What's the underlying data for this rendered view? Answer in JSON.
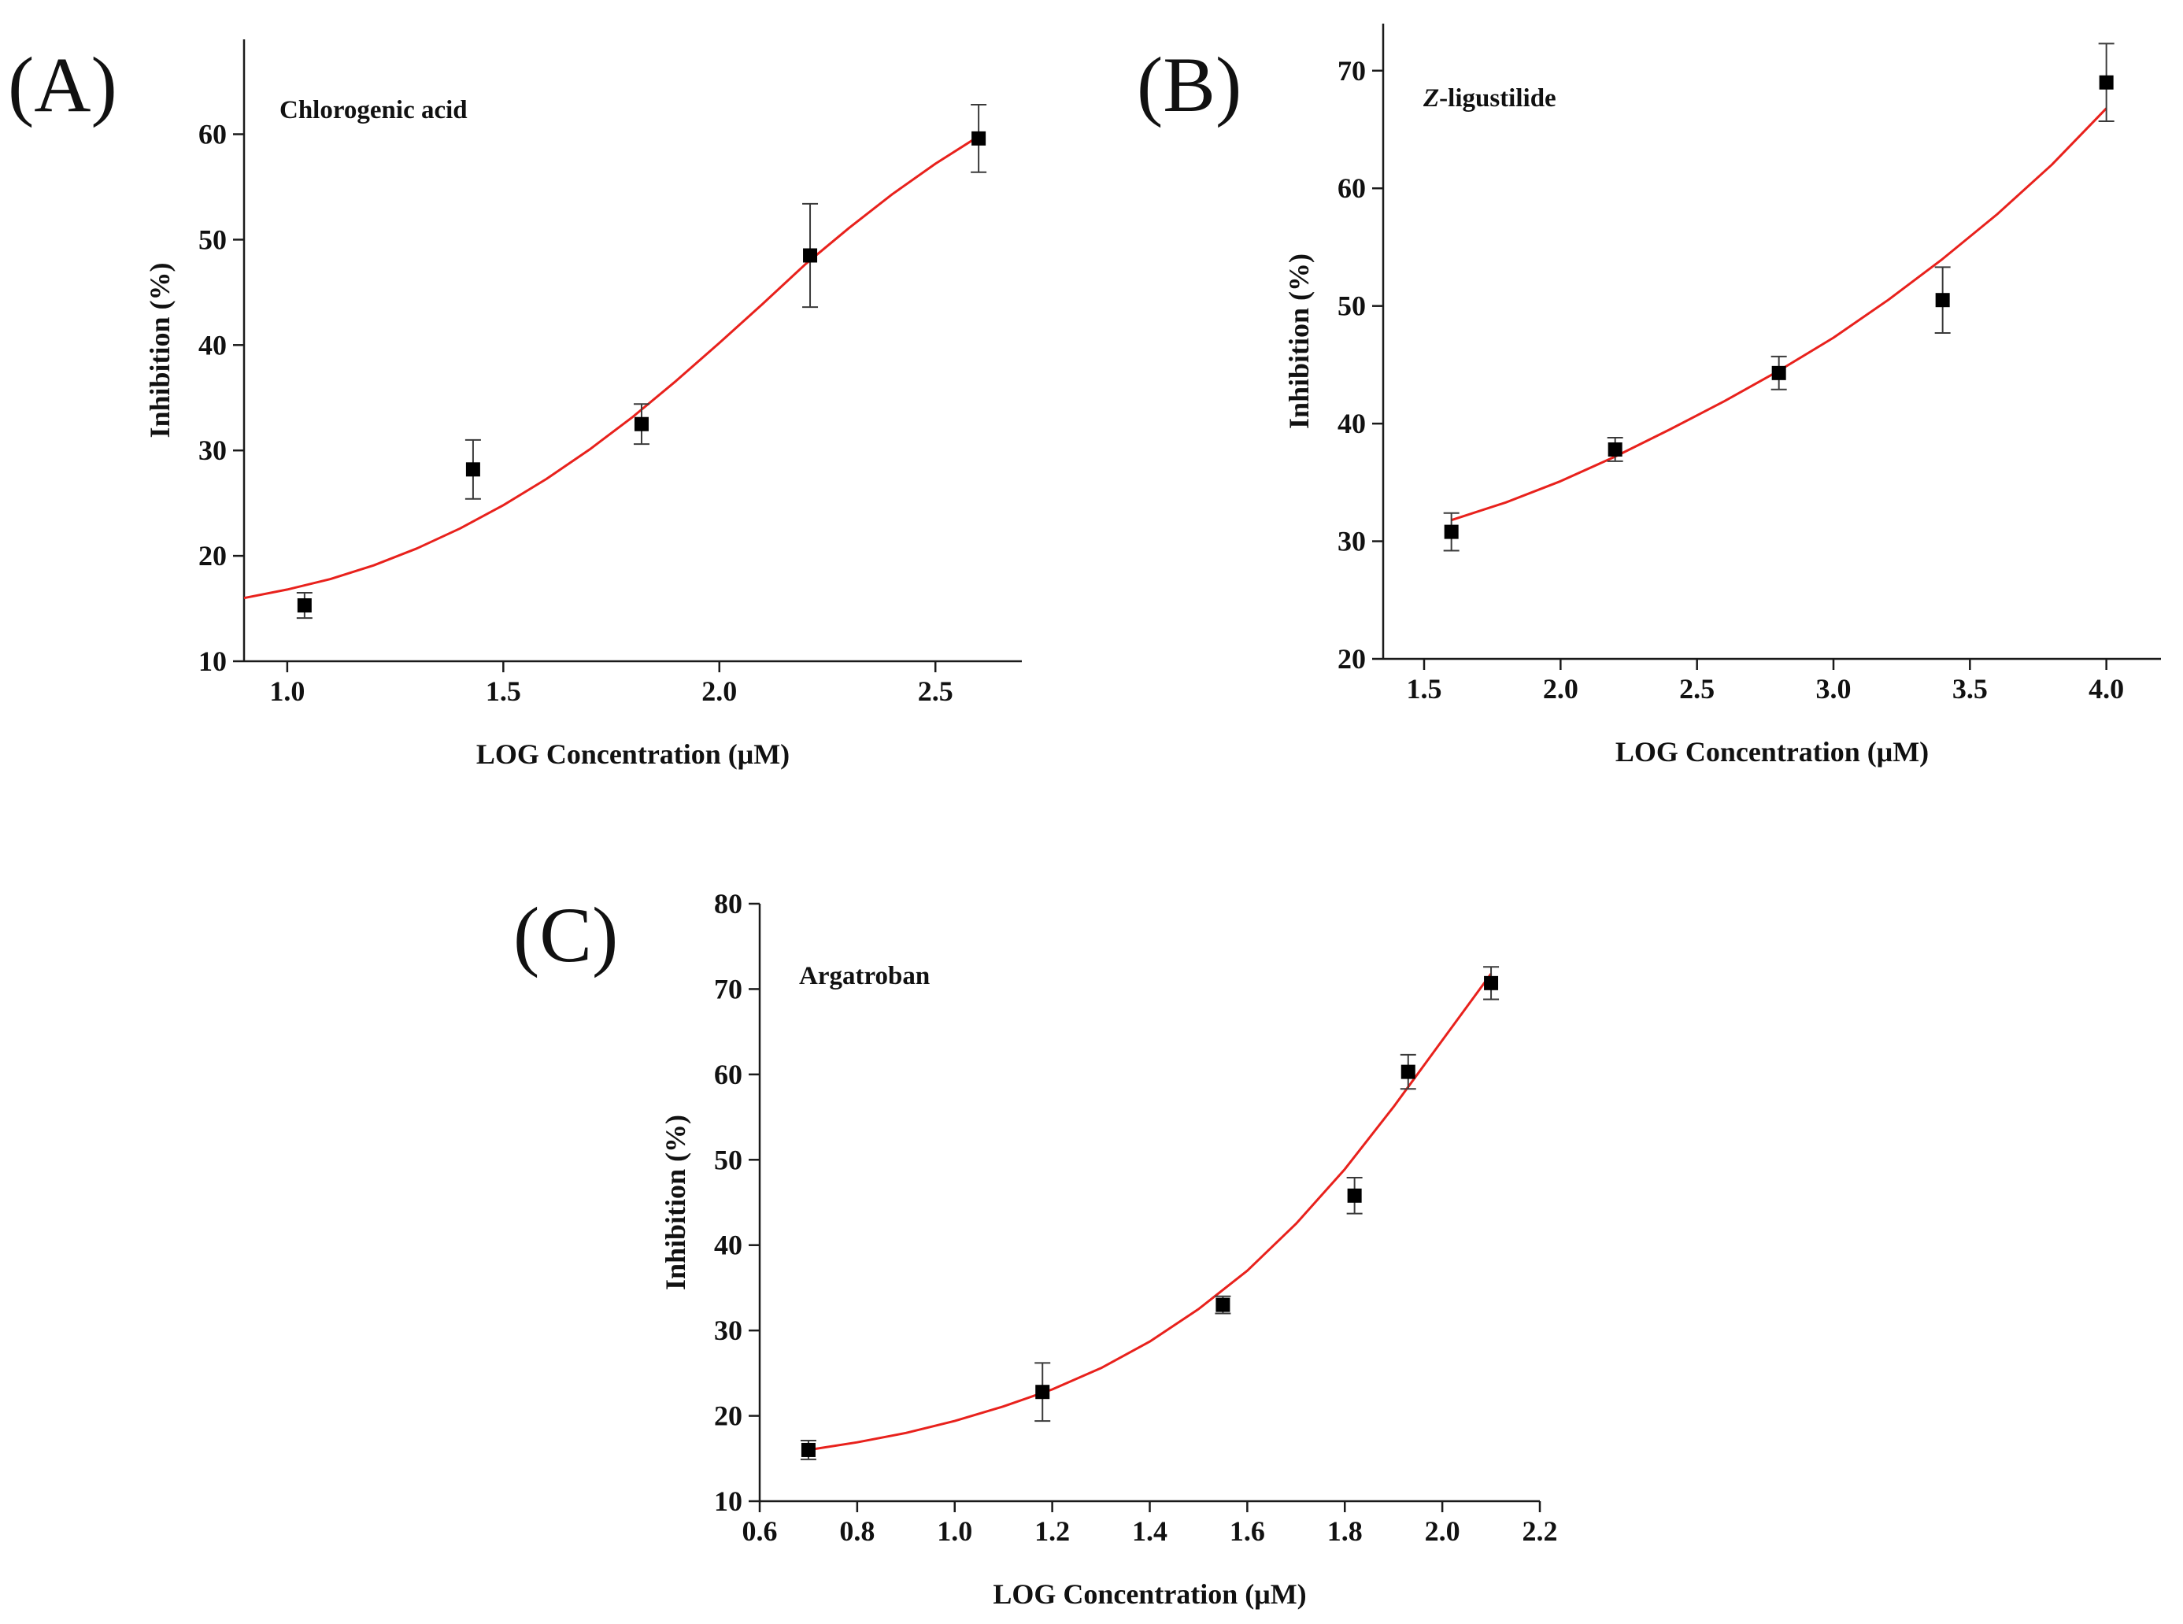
{
  "figure": {
    "panel_labels": [
      "(A)",
      "(B)",
      "(C)"
    ]
  },
  "colors": {
    "fit": "#e8211c",
    "marker": "#000000",
    "axis": "#1a1a1a",
    "error": "#3a3a3a"
  },
  "chart_data": [
    {
      "type": "scatter",
      "panel": "(A)",
      "title": "Chlorogenic acid",
      "xlabel": "LOG Concentration (μM)",
      "ylabel": "Inhibition (%)",
      "xlim": [
        0.9,
        2.7
      ],
      "ylim": [
        10,
        69
      ],
      "xticks": [
        1.0,
        1.5,
        2.0,
        2.5
      ],
      "xtick_labels": [
        "1.0",
        "1.5",
        "2.0",
        "2.5"
      ],
      "yticks": [
        10,
        20,
        30,
        40,
        50,
        60
      ],
      "ytick_labels": [
        "10",
        "20",
        "30",
        "40",
        "50",
        "60"
      ],
      "points": [
        {
          "x": 1.04,
          "y": 15.3,
          "err": 1.2
        },
        {
          "x": 1.43,
          "y": 28.2,
          "err": 2.8
        },
        {
          "x": 1.82,
          "y": 32.5,
          "err": 1.9
        },
        {
          "x": 2.21,
          "y": 48.5,
          "err": 4.9
        },
        {
          "x": 2.6,
          "y": 59.6,
          "err": 3.2
        }
      ],
      "fit": {
        "x": [
          0.9,
          1.0,
          1.1,
          1.2,
          1.3,
          1.4,
          1.5,
          1.6,
          1.7,
          1.8,
          1.9,
          2.0,
          2.1,
          2.2,
          2.3,
          2.4,
          2.5,
          2.6
        ],
        "y": [
          16.0,
          16.8,
          17.8,
          19.1,
          20.7,
          22.6,
          24.8,
          27.3,
          30.1,
          33.2,
          36.6,
          40.2,
          43.9,
          47.7,
          51.1,
          54.3,
          57.2,
          59.8
        ]
      }
    },
    {
      "type": "scatter",
      "panel": "(B)",
      "title": "Z-ligustilide",
      "title_italic_prefix": "Z",
      "title_suffix": "-ligustilide",
      "xlabel": "LOG Concentration (μM)",
      "ylabel": "Inhibition (%)",
      "xlim": [
        1.35,
        4.2
      ],
      "ylim": [
        20,
        74
      ],
      "xticks": [
        1.5,
        2.0,
        2.5,
        3.0,
        3.5,
        4.0
      ],
      "xtick_labels": [
        "1.5",
        "2.0",
        "2.5",
        "3.0",
        "3.5",
        "4.0"
      ],
      "yticks": [
        20,
        30,
        40,
        50,
        60,
        70
      ],
      "ytick_labels": [
        "20",
        "30",
        "40",
        "50",
        "60",
        "70"
      ],
      "points": [
        {
          "x": 1.6,
          "y": 30.8,
          "err": 1.6
        },
        {
          "x": 2.2,
          "y": 37.8,
          "err": 1.0
        },
        {
          "x": 2.8,
          "y": 44.3,
          "err": 1.4
        },
        {
          "x": 3.4,
          "y": 50.5,
          "err": 2.8
        },
        {
          "x": 4.0,
          "y": 69.0,
          "err": 3.3
        }
      ],
      "fit": {
        "x": [
          1.6,
          1.8,
          2.0,
          2.2,
          2.4,
          2.6,
          2.8,
          3.0,
          3.2,
          3.4,
          3.6,
          3.8,
          4.0
        ],
        "y": [
          31.8,
          33.3,
          35.1,
          37.2,
          39.5,
          41.9,
          44.5,
          47.3,
          50.5,
          54.0,
          57.8,
          62.0,
          66.8
        ]
      }
    },
    {
      "type": "scatter",
      "panel": "(C)",
      "title": "Argatroban",
      "xlabel": "LOG Concentration (μM)",
      "ylabel": "Inhibition (%)",
      "xlim": [
        0.6,
        2.2
      ],
      "ylim": [
        10,
        80
      ],
      "xticks": [
        0.6,
        0.8,
        1.0,
        1.2,
        1.4,
        1.6,
        1.8,
        2.0,
        2.2
      ],
      "xtick_labels": [
        "0.6",
        "0.8",
        "1.0",
        "1.2",
        "1.4",
        "1.6",
        "1.8",
        "2.0",
        "2.2"
      ],
      "yticks": [
        10,
        20,
        30,
        40,
        50,
        60,
        70,
        80
      ],
      "ytick_labels": [
        "10",
        "20",
        "30",
        "40",
        "50",
        "60",
        "70",
        "80"
      ],
      "points": [
        {
          "x": 0.7,
          "y": 16.0,
          "err": 1.1
        },
        {
          "x": 1.18,
          "y": 22.8,
          "err": 3.4
        },
        {
          "x": 1.55,
          "y": 33.0,
          "err": 1.0
        },
        {
          "x": 1.82,
          "y": 45.8,
          "err": 2.1
        },
        {
          "x": 1.93,
          "y": 60.3,
          "err": 2.0
        },
        {
          "x": 2.1,
          "y": 70.7,
          "err": 1.9
        }
      ],
      "fit": {
        "x": [
          0.7,
          0.8,
          0.9,
          1.0,
          1.1,
          1.2,
          1.3,
          1.4,
          1.5,
          1.6,
          1.7,
          1.8,
          1.9,
          2.0,
          2.1
        ],
        "y": [
          16.0,
          16.9,
          18.0,
          19.4,
          21.1,
          23.1,
          25.6,
          28.7,
          32.5,
          37.0,
          42.5,
          48.9,
          56.2,
          64.0,
          71.8
        ]
      }
    }
  ]
}
